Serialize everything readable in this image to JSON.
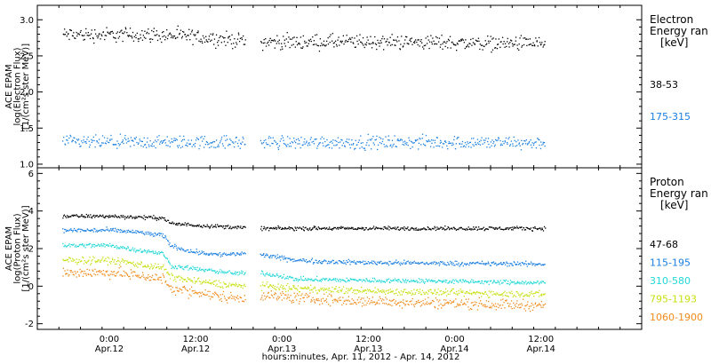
{
  "chart_data": [
    {
      "type": "scatter",
      "panel": "electron",
      "ylabel_lines": [
        "ACE EPAM",
        "log(Electron Flux)",
        "[1/(cm²s ster MeV)]"
      ],
      "ylim": [
        0.95,
        3.2
      ],
      "yticks": [
        1.0,
        1.5,
        2.0,
        2.5,
        3.0
      ],
      "ytick_labels": [
        "1.0",
        "1.5",
        "2.0",
        "2.5",
        "3.0"
      ],
      "legend_title": [
        "Electron",
        "Energy ran",
        "[keV]"
      ],
      "data_gap_hours": [
        18.9,
        20.9
      ],
      "series": [
        {
          "name": "38-53",
          "color": "#000000",
          "y": [
            [
              0,
              2.8
            ],
            [
              6,
              2.8
            ],
            [
              12,
              2.77
            ],
            [
              18,
              2.72
            ],
            [
              21,
              2.7
            ],
            [
              30,
              2.7
            ],
            [
              42,
              2.7
            ],
            [
              54,
              2.68
            ],
            [
              60,
              2.68
            ]
          ],
          "noise": 0.05
        },
        {
          "name": "175-315",
          "color": "#1a7fe0",
          "y": [
            [
              0,
              1.31
            ],
            [
              12,
              1.31
            ],
            [
              24,
              1.31
            ],
            [
              36,
              1.31
            ],
            [
              48,
              1.31
            ],
            [
              60,
              1.3
            ]
          ],
          "noise": 0.045
        }
      ]
    },
    {
      "type": "scatter",
      "panel": "proton",
      "ylabel_lines": [
        "ACE EPAM",
        "log(Proton Flux)",
        "[1/(cm²s ster MeV)]"
      ],
      "ylim": [
        -2.3,
        6.3
      ],
      "yticks": [
        -2,
        0,
        2,
        4,
        6
      ],
      "ytick_labels": [
        "-2",
        "0",
        "2",
        "4",
        "6"
      ],
      "legend_title": [
        "Proton",
        "Energy ran",
        "[keV]"
      ],
      "data_gap_hours": [
        18.9,
        20.9
      ],
      "series": [
        {
          "name": "47-68",
          "color": "#000000",
          "y": [
            [
              0,
              3.75
            ],
            [
              4,
              3.7
            ],
            [
              7.5,
              3.65
            ],
            [
              8.5,
              3.35
            ],
            [
              11,
              3.3
            ],
            [
              13,
              3.25
            ],
            [
              18,
              3.15
            ],
            [
              21,
              3.1
            ],
            [
              33,
              3.1
            ],
            [
              45,
              3.1
            ],
            [
              60,
              3.1
            ]
          ],
          "noise": 0.05
        },
        {
          "name": "115-195",
          "color": "#1a7fe0",
          "y": [
            [
              0,
              3.0
            ],
            [
              4,
              2.9
            ],
            [
              7.5,
              2.7
            ],
            [
              8.5,
              2.2
            ],
            [
              11,
              1.9
            ],
            [
              13,
              1.8
            ],
            [
              15,
              1.7
            ],
            [
              18,
              1.75
            ],
            [
              21,
              1.7
            ],
            [
              26,
              1.4
            ],
            [
              33,
              1.3
            ],
            [
              45,
              1.25
            ],
            [
              60,
              1.2
            ]
          ],
          "noise": 0.06
        },
        {
          "name": "310-580",
          "color": "#22d8d8",
          "y": [
            [
              0,
              2.2
            ],
            [
              4,
              1.95
            ],
            [
              7.5,
              1.75
            ],
            [
              8.5,
              1.1
            ],
            [
              12,
              0.95
            ],
            [
              15,
              0.8
            ],
            [
              18,
              0.7
            ],
            [
              21,
              0.75
            ],
            [
              26,
              0.4
            ],
            [
              33,
              0.35
            ],
            [
              45,
              0.3
            ],
            [
              60,
              0.2
            ]
          ],
          "noise": 0.06
        },
        {
          "name": "795-1193",
          "color": "#c6e010",
          "y": [
            [
              0,
              1.4
            ],
            [
              4,
              1.2
            ],
            [
              7.5,
              1.0
            ],
            [
              8.5,
              0.5
            ],
            [
              12,
              0.3
            ],
            [
              15,
              0.15
            ],
            [
              18,
              0.05
            ],
            [
              21,
              0.05
            ],
            [
              26,
              -0.1
            ],
            [
              33,
              -0.2
            ],
            [
              45,
              -0.3
            ],
            [
              60,
              -0.4
            ]
          ],
          "noise": 0.09
        },
        {
          "name": "1060-1900",
          "color": "#f08a1a",
          "y": [
            [
              0,
              0.75
            ],
            [
              4,
              0.6
            ],
            [
              7.5,
              0.4
            ],
            [
              8.5,
              -0.1
            ],
            [
              12,
              -0.3
            ],
            [
              15,
              -0.5
            ],
            [
              18,
              -0.6
            ],
            [
              21,
              -0.45
            ],
            [
              26,
              -0.6
            ],
            [
              33,
              -0.75
            ],
            [
              45,
              -0.85
            ],
            [
              60,
              -1.0
            ]
          ],
          "noise": 0.14
        }
      ]
    }
  ],
  "x_axis": {
    "xlabel": "hours:minutes, Apr. 11, 2012 - Apr. 14, 2012",
    "hours_range": [
      -10,
      74
    ],
    "major_ticks": [
      {
        "h": 0,
        "time": "0:00",
        "date": "Apr.12"
      },
      {
        "h": 12,
        "time": "12:00",
        "date": "Apr.12"
      },
      {
        "h": 24,
        "time": "0:00",
        "date": "Apr.13"
      },
      {
        "h": 36,
        "time": "12:00",
        "date": "Apr.13"
      },
      {
        "h": 48,
        "time": "0:00",
        "date": "Apr.14"
      },
      {
        "h": 60,
        "time": "12:00",
        "date": "Apr.14"
      }
    ],
    "minor_tick_hours": 3
  }
}
